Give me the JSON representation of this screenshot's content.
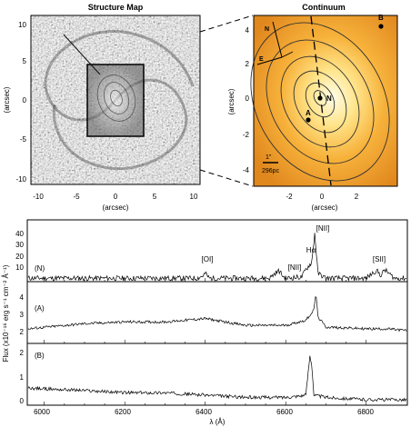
{
  "figure": {
    "structure_map": {
      "title": "Structure Map",
      "xlabel": "(arcsec)",
      "ylabel": "(arcsec)",
      "xticks": [
        "-10",
        "-5",
        "0",
        "5",
        "10"
      ],
      "yticks": [
        "10",
        "5",
        "0",
        "-5",
        "-10"
      ]
    },
    "continuum": {
      "title": "Continuum",
      "xlabel": "(arcsec)",
      "ylabel": "(arcsec)",
      "xticks": [
        "-2",
        "0",
        "2"
      ],
      "yticks": [
        "4",
        "2",
        "0",
        "-2",
        "-4"
      ],
      "labels": {
        "nucleus": "N",
        "a": "A",
        "b": "B",
        "compass_n": "N",
        "compass_e": "E"
      },
      "scalebar": {
        "angle": "1\"",
        "distance": "296pc"
      }
    },
    "spectra": {
      "ylabel": "Flux (x10⁻¹⁶ erg s⁻¹ cm⁻² Å⁻¹)",
      "xlabel": "λ (Å)",
      "xticks": [
        "6000",
        "6200",
        "6400",
        "6600",
        "6800"
      ],
      "panels": [
        {
          "label": "(N)",
          "yticks": [
            "40",
            "30",
            "20",
            "10"
          ]
        },
        {
          "label": "(A)",
          "yticks": [
            "4",
            "3",
            "2"
          ]
        },
        {
          "label": "(B)",
          "yticks": [
            "2",
            "1",
            "0"
          ]
        }
      ],
      "lines": [
        {
          "label": "[OI]"
        },
        {
          "label": "[NII]"
        },
        {
          "label": "Hα"
        },
        {
          "label": "[NII]"
        },
        {
          "label": "[SII]"
        }
      ]
    }
  },
  "chart_data": [
    {
      "type": "line",
      "panel": "N",
      "xlabel": "λ (Å)",
      "xlim": [
        5960,
        6900
      ],
      "ylim": [
        0,
        48
      ],
      "x": [
        5960,
        6100,
        6200,
        6300,
        6380,
        6395,
        6400,
        6410,
        6500,
        6560,
        6570,
        6583,
        6595,
        6600,
        6640,
        6650,
        6665,
        6672,
        6680,
        6700,
        6800,
        6820,
        6826,
        6838,
        6845,
        6870,
        6900
      ],
      "y": [
        2,
        2,
        2,
        2,
        2,
        4,
        6,
        2,
        2,
        2,
        5,
        8,
        3,
        2,
        3,
        9,
        15,
        38,
        6,
        2,
        2,
        7,
        8,
        4,
        9,
        2,
        2
      ]
    },
    {
      "type": "line",
      "panel": "A",
      "xlabel": "λ (Å)",
      "xlim": [
        5960,
        6900
      ],
      "ylim": [
        1.3,
        4.8
      ],
      "x": [
        5960,
        6100,
        6200,
        6300,
        6400,
        6500,
        6600,
        6650,
        6670,
        6675,
        6680,
        6700,
        6800,
        6850,
        6900
      ],
      "y": [
        2.1,
        2.4,
        2.5,
        2.5,
        2.7,
        2.3,
        2.3,
        2.6,
        3.2,
        4.2,
        2.8,
        2.2,
        2.1,
        2.1,
        2.0
      ]
    },
    {
      "type": "line",
      "panel": "B",
      "xlabel": "λ (Å)",
      "xlim": [
        5960,
        6900
      ],
      "ylim": [
        0,
        2.6
      ],
      "x": [
        5960,
        6100,
        6200,
        6300,
        6400,
        6500,
        6600,
        6650,
        6660,
        6665,
        6670,
        6700,
        6800,
        6900
      ],
      "y": [
        0.7,
        0.6,
        0.5,
        0.5,
        0.4,
        0.3,
        0.3,
        0.4,
        2.1,
        1.7,
        0.4,
        0.3,
        0.2,
        0.2
      ]
    }
  ]
}
